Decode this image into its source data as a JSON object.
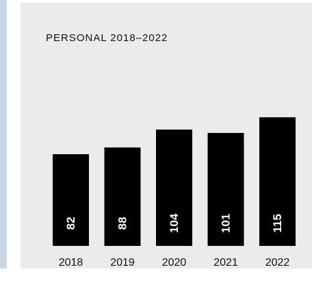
{
  "colors": {
    "bar": "#000000",
    "bar_label": "#ffffff",
    "panel": "#ebebeb",
    "accent_rule": "#c9d7e6"
  },
  "chart_data": {
    "type": "bar",
    "title": "PERSONAL 2018–2022",
    "categories": [
      "2018",
      "2019",
      "2020",
      "2021",
      "2022"
    ],
    "values": [
      82,
      88,
      104,
      101,
      115
    ],
    "data_label_orientation": "vertical",
    "grid": false,
    "legend": "none"
  }
}
